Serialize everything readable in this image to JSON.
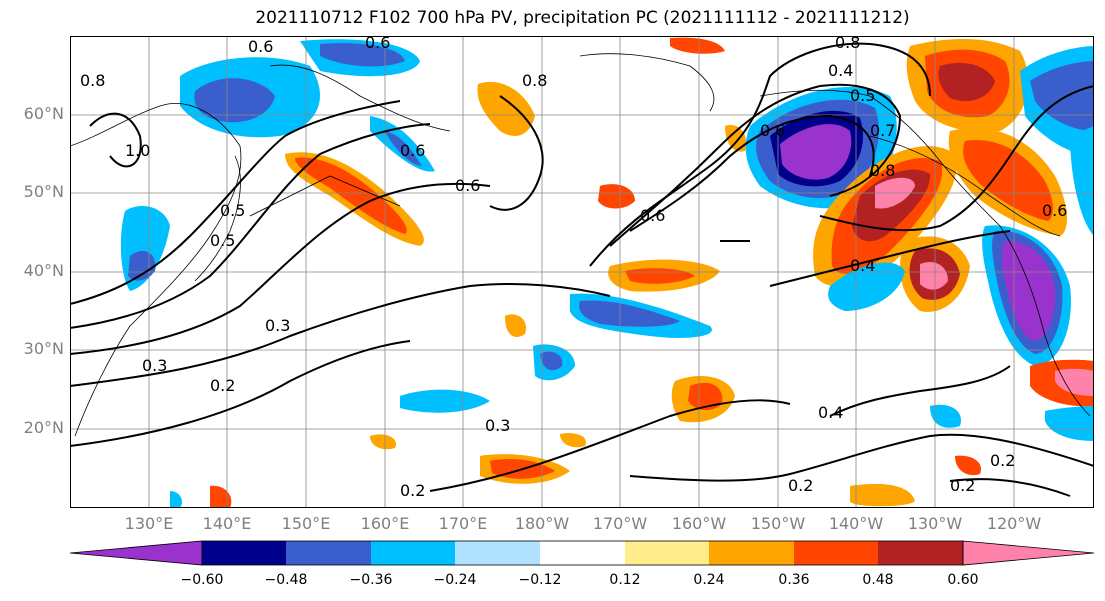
{
  "title": "2021110712 F102 700 hPa PV, precipitation PC (2021111112 - 2021111212)",
  "lat_labels": [
    "60°N",
    "50°N",
    "40°N",
    "30°N",
    "20°N"
  ],
  "lon_labels": [
    "130°E",
    "140°E",
    "150°E",
    "160°E",
    "170°E",
    "180°W",
    "170°W",
    "160°W",
    "150°W",
    "140°W",
    "130°W",
    "120°W"
  ],
  "colorbar": {
    "ticks": [
      "−0.60",
      "−0.48",
      "−0.36",
      "−0.24",
      "−0.12",
      "0.12",
      "0.24",
      "0.36",
      "0.48",
      "0.60"
    ],
    "colors": [
      "#9a32cd",
      "#00008b",
      "#3a5fcd",
      "#00bfff",
      "#b0e2ff",
      "#ffffff",
      "#ffec8b",
      "#ffa500",
      "#ff4500",
      "#b22222",
      "#ff82ab"
    ]
  },
  "contour_labels": [
    "0.6",
    "0.6",
    "0.8",
    "0.8",
    "1.0",
    "0.6",
    "0.6",
    "0.5",
    "0.5",
    "0.3",
    "0.3",
    "0.2",
    "0.3",
    "0.2",
    "0.6",
    "0.8",
    "0.4",
    "0.6",
    "0.5",
    "0.7",
    "0.8",
    "0.4",
    "0.4",
    "0.2",
    "0.2",
    "0.2",
    "0.6"
  ]
}
